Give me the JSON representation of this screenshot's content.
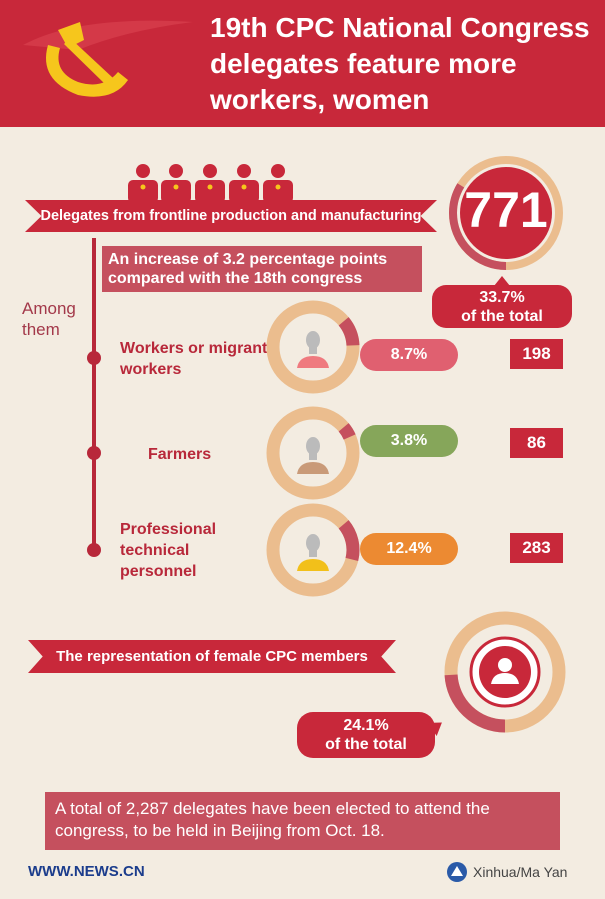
{
  "header": {
    "title": "19th CPC National Congress delegates feature more workers, women"
  },
  "frontline": {
    "label": "Delegates from frontline production and manufacturing",
    "count": "771",
    "share_label_pct": "33.7%",
    "share_label_text": "of the total",
    "share_pct": 33.7,
    "increase_text": "An increase of 3.2 percentage points compared with the 18th congress",
    "among_label": "Among them",
    "categories": [
      {
        "label": "Workers or migrant workers",
        "pct_label": "8.7%",
        "pct": 8.7,
        "count": "198",
        "pill_color": "#e06070",
        "figure_color": "#ef7a7f"
      },
      {
        "label": "Farmers",
        "pct_label": "3.8%",
        "pct": 3.8,
        "count": "86",
        "pill_color": "#86a65a",
        "figure_color": "#c99a78"
      },
      {
        "label": "Professional technical personnel",
        "pct_label": "12.4%",
        "pct": 12.4,
        "count": "283",
        "pill_color": "#ec8a32",
        "figure_color": "#f2c01a"
      }
    ]
  },
  "female": {
    "label": "The representation of female CPC members",
    "pct_label": "24.1%",
    "pct_text": "of the total",
    "pct": 24.1
  },
  "summary": "A total of 2,287 delegates have been elected to attend the congress, to be held in Beijing from Oct. 18.",
  "footer": {
    "site": "WWW.NEWS.CN",
    "credit": "Xinhua/Ma Yan"
  },
  "colors": {
    "red": "#c8283a",
    "ring": "#ebbd8e",
    "arc": "#c5505e",
    "background": "#f3ece1"
  }
}
